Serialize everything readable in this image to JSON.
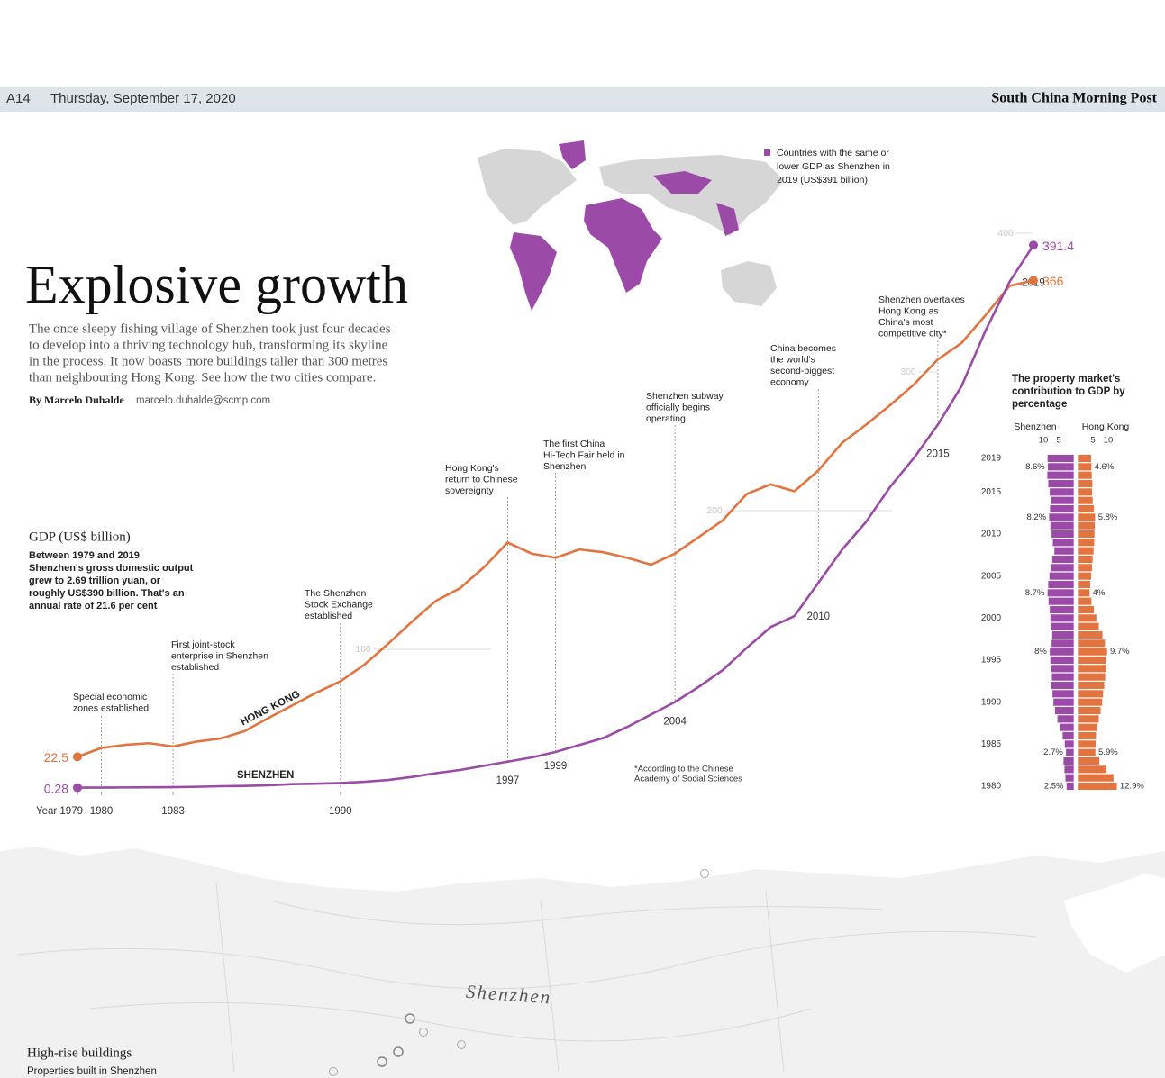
{
  "header": {
    "page": "A14",
    "date": "Thursday, September 17, 2020",
    "masthead": "South China Morning Post"
  },
  "title": "Explosive growth",
  "intro": [
    "The once sleepy fishing village of Shenzhen took just four decades",
    "to develop into a thriving technology hub, transforming its skyline",
    "in the process. It now boasts more buildings taller than 300 metres",
    "than neighbouring Hong Kong. See how the two cities compare."
  ],
  "byline": {
    "author": "By Marcelo Duhalde",
    "email": "marcelo.duhalde@scmp.com"
  },
  "world_map": {
    "legend": [
      "Countries with the same or",
      "lower GDP as Shenzhen in",
      "2019 (US$391 billion)"
    ]
  },
  "chart_data": [
    {
      "type": "line",
      "title": "GDP (US$ billion)",
      "description": [
        "Between 1979 and 2019",
        "Shenzhen's gross domestic output",
        "grew to 2.69 trillion yuan, or",
        "roughly US$390 billion. That's an",
        "annual rate of 21.6 per cent"
      ],
      "x": [
        1979,
        1980,
        1981,
        1982,
        1983,
        1984,
        1985,
        1986,
        1987,
        1988,
        1989,
        1990,
        1991,
        1992,
        1993,
        1994,
        1995,
        1996,
        1997,
        1998,
        1999,
        2000,
        2001,
        2002,
        2003,
        2004,
        2005,
        2006,
        2007,
        2008,
        2009,
        2010,
        2011,
        2012,
        2013,
        2014,
        2015,
        2016,
        2017,
        2018,
        2019
      ],
      "xlim": [
        1979,
        2019
      ],
      "xticks": [
        {
          "value": 1979,
          "label": "Year 1979"
        },
        1980,
        1983,
        1990
      ],
      "ylim": [
        0,
        400
      ],
      "yticks": [
        100,
        200,
        300,
        400
      ],
      "series": [
        {
          "name": "HONG KONG",
          "color": "#e2743f",
          "values": [
            22.5,
            28.9,
            31.1,
            32.3,
            29.9,
            33.5,
            35.7,
            41.1,
            50.6,
            59.7,
            68.8,
            76.9,
            88.9,
            104,
            120,
            135,
            144,
            159,
            177,
            169,
            166,
            172,
            170,
            166,
            161,
            169,
            181,
            193,
            212,
            219,
            214,
            229,
            249,
            262,
            276,
            291,
            309,
            321,
            341,
            362,
            366
          ]
        },
        {
          "name": "SHENZHEN",
          "color": "#9c4aa8",
          "values": [
            0.28,
            0.3,
            0.4,
            0.5,
            0.6,
            0.9,
            1.3,
            1.5,
            2,
            2.8,
            3.1,
            3.6,
            4.5,
            5.8,
            8,
            10.7,
            13,
            16,
            19,
            22,
            26,
            31,
            36,
            44,
            53,
            62,
            73,
            85,
            101,
            116,
            124,
            148,
            172,
            192,
            217,
            238,
            262,
            290,
            330,
            365,
            391.4
          ]
        }
      ],
      "annotations": [
        {
          "x": 1980,
          "lines": [
            "Special economic",
            "zones established"
          ]
        },
        {
          "x": 1983,
          "lines": [
            "First joint-stock",
            "enterprise in Shenzhen",
            "established"
          ]
        },
        {
          "x": 1990,
          "lines": [
            "The Shenzhen",
            "Stock Exchange",
            "established"
          ]
        },
        {
          "x": 1997,
          "lines": [
            "Hong Kong's",
            "return to Chinese",
            "sovereignty"
          ]
        },
        {
          "x": 1999,
          "lines": [
            "The first China",
            "Hi-Tech Fair held in",
            "Shenzhen"
          ]
        },
        {
          "x": 2004,
          "lines": [
            "Shenzhen subway",
            "officially begins",
            "operating"
          ]
        },
        {
          "x": 2010,
          "lines": [
            "China becomes",
            "the world's",
            "second-biggest",
            "economy"
          ]
        },
        {
          "x": 2015,
          "lines": [
            "Shenzhen overtakes",
            "Hong Kong as",
            "China's most",
            "competitive city*"
          ]
        },
        {
          "x": 2019
        }
      ],
      "footnote": [
        "*According to the Chinese",
        "Academy of Social Sciences"
      ]
    },
    {
      "type": "bar",
      "orientation": "horizontal",
      "title": [
        "The property market's",
        "contribution to GDP by",
        "percentage"
      ],
      "categories": [
        "1980",
        null,
        null,
        null,
        null,
        "1985",
        null,
        null,
        null,
        null,
        "1990",
        null,
        null,
        null,
        null,
        "1995",
        null,
        null,
        null,
        null,
        "2000",
        null,
        null,
        null,
        null,
        "2005",
        null,
        null,
        null,
        null,
        "2010",
        null,
        null,
        null,
        null,
        "2015",
        null,
        null,
        null,
        "2019"
      ],
      "xlim": [
        0,
        15
      ],
      "xticks": [
        5,
        10
      ],
      "series": [
        {
          "name": "Shenzhen",
          "color": "#9c4aa8",
          "values": [
            2.5,
            2.9,
            3.2,
            3.5,
            2.7,
            3.1,
            3.8,
            4.6,
            5.5,
            6.3,
            6.8,
            7.1,
            7.5,
            7.3,
            7.6,
            7.8,
            8,
            7.4,
            7.2,
            7.5,
            7.8,
            8,
            8.4,
            8.7,
            8.5,
            8.1,
            7.6,
            7.2,
            6.5,
            7,
            7.4,
            7.8,
            8.2,
            7.9,
            7.6,
            8,
            8.5,
            8.8,
            8.6,
            8.7
          ],
          "value_labels": [
            "2.5%",
            null,
            null,
            null,
            "2.7%",
            null,
            null,
            null,
            null,
            null,
            null,
            null,
            null,
            null,
            null,
            null,
            "8%",
            null,
            null,
            null,
            null,
            null,
            null,
            "8.7%",
            null,
            null,
            null,
            null,
            null,
            null,
            null,
            null,
            "8.2%",
            null,
            null,
            null,
            null,
            null,
            "8.6%",
            null
          ]
        },
        {
          "name": "Hong Kong",
          "color": "#e2743f",
          "values": [
            12.9,
            11.8,
            9.5,
            7.2,
            5.9,
            6,
            6.1,
            6.5,
            7,
            7.6,
            8.1,
            8.4,
            8.8,
            9.1,
            9.4,
            9.3,
            9.7,
            9,
            8.2,
            7,
            6.2,
            5.4,
            4.6,
            4,
            4.2,
            4.5,
            4.8,
            5,
            5.3,
            5.5,
            5.6,
            5.7,
            5.8,
            5.4,
            5,
            4.8,
            4.9,
            4.7,
            4.6,
            4.5
          ],
          "value_labels": [
            "12.9%",
            null,
            null,
            null,
            "5.9%",
            null,
            null,
            null,
            null,
            null,
            null,
            null,
            null,
            null,
            null,
            null,
            "9.7%",
            null,
            null,
            null,
            null,
            null,
            null,
            "4%",
            null,
            null,
            null,
            null,
            null,
            null,
            null,
            null,
            "5.8%",
            null,
            null,
            null,
            null,
            null,
            "4.6%",
            null
          ]
        }
      ]
    }
  ],
  "city_map": {
    "label": "Shenzhen",
    "title": "High-rise buildings",
    "subtitle": "Properties built in Shenzhen"
  }
}
